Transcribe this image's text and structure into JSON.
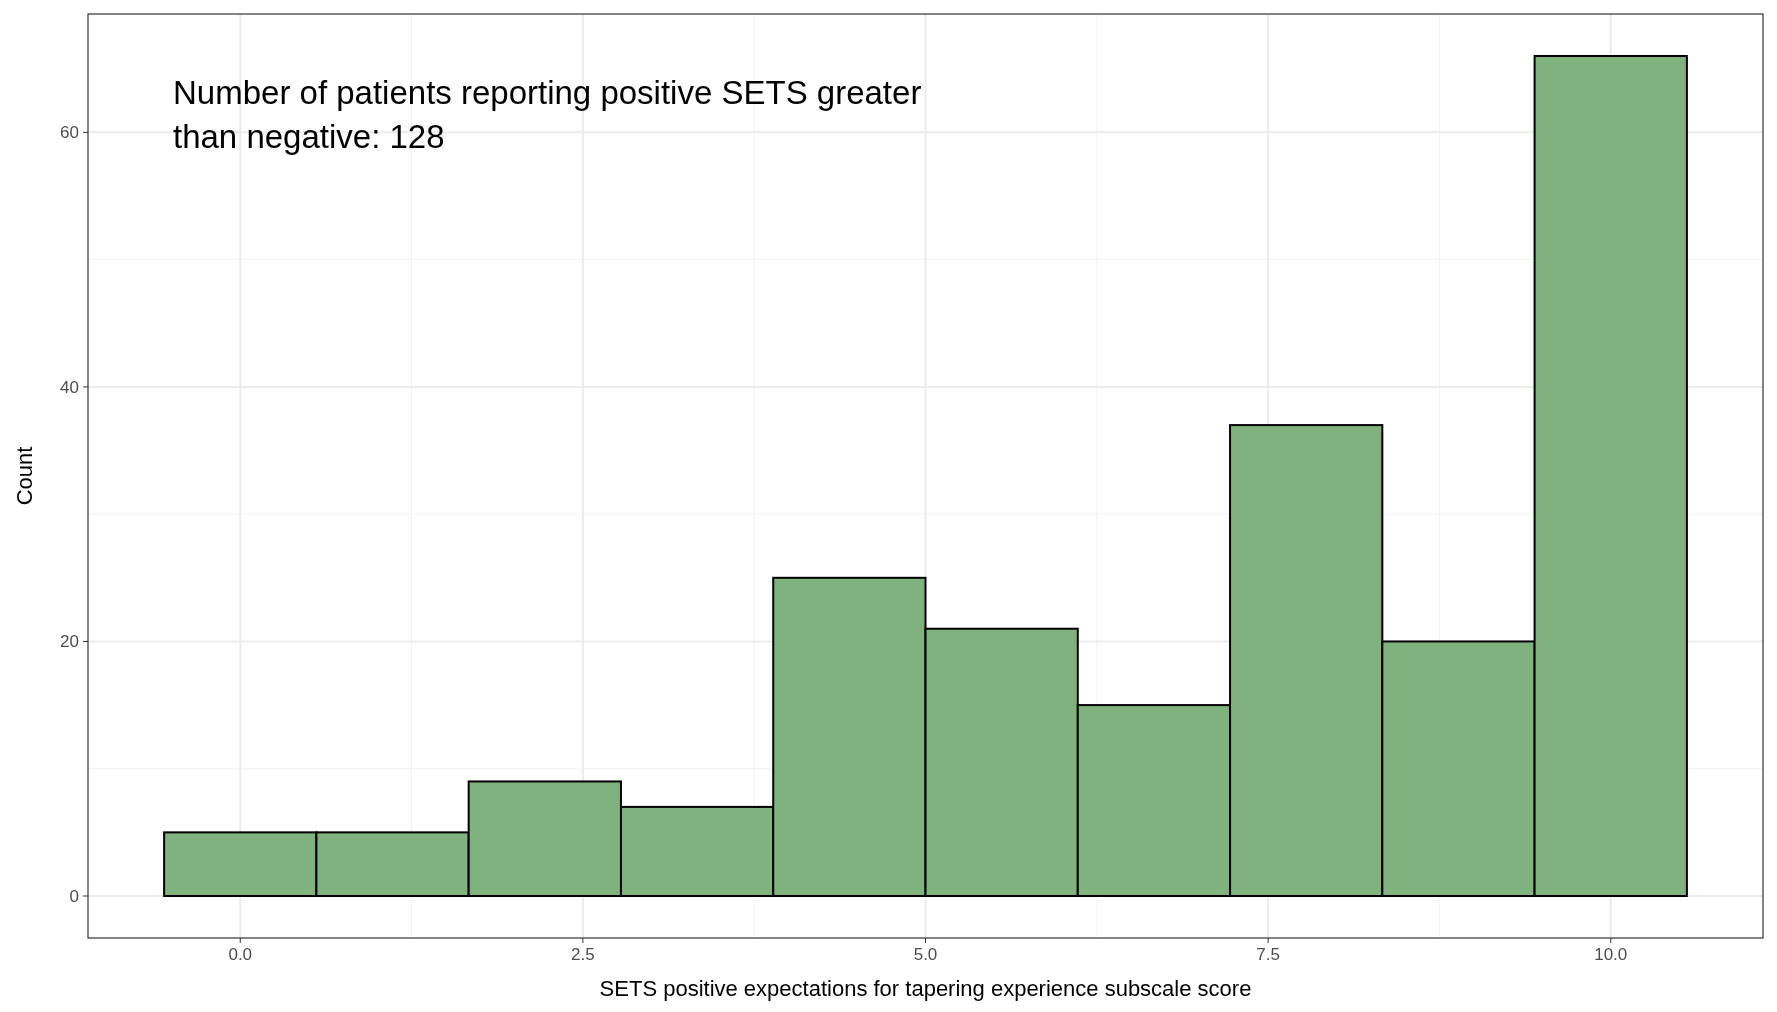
{
  "chart_data": {
    "type": "histogram",
    "xlabel": "SETS positive  expectations for tapering experience subscale score",
    "ylabel": "Count",
    "bins": [
      -0.5556,
      0.5556,
      1.6667,
      2.7778,
      3.8889,
      5.0,
      6.1111,
      7.2222,
      8.3333,
      9.4444,
      10.5556
    ],
    "values": [
      5,
      5,
      9,
      7,
      25,
      21,
      15,
      37,
      20,
      66
    ],
    "color": "#7fb27c",
    "xlim": [
      -1.111,
      11.111
    ],
    "ylim": [
      -3.3,
      69.3
    ],
    "xticks": [
      {
        "value": 0,
        "label": "0.0"
      },
      {
        "value": 2.5,
        "label": "2.5"
      },
      {
        "value": 5,
        "label": "5.0"
      },
      {
        "value": 7.5,
        "label": "7.5"
      },
      {
        "value": 10,
        "label": "10.0"
      }
    ],
    "yticks": [
      0,
      20,
      40,
      60
    ],
    "grid": true,
    "annotations": [
      "Number of patients reporting positive SETS greater than negative: 128"
    ]
  }
}
